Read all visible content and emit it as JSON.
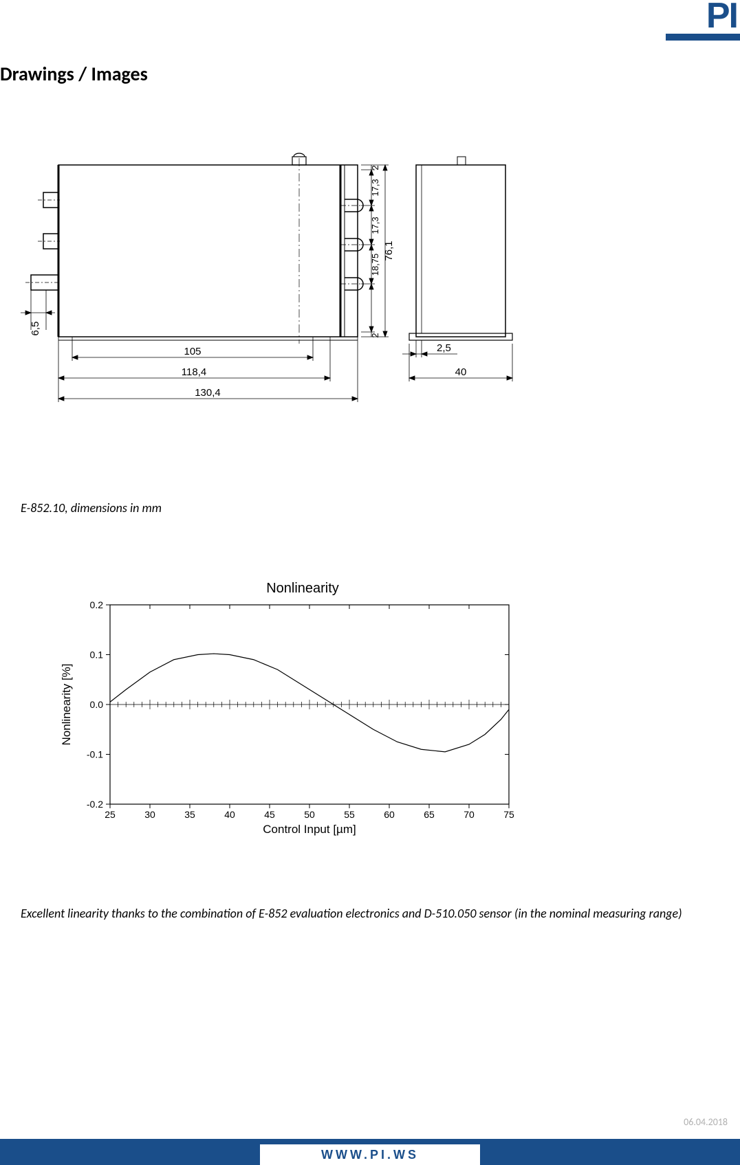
{
  "logo_text": "PI",
  "section_title": "Drawings / Images",
  "caption1": "E-852.10, dimensions in mm",
  "caption2": "Excellent linearity thanks to the combination of E-852 evaluation electronics and D-510.050 sensor (in the nominal measuring range)",
  "date": "06.04.2018",
  "footer_url": "WWW.PI.WS",
  "colors": {
    "brand": "#1a4e8a",
    "text": "#000000",
    "gray": "#b0b0b0",
    "stroke": "#000000",
    "fill_none": "none"
  },
  "drawing": {
    "stroke_width_thin": 0.8,
    "stroke_width_med": 1.5,
    "stroke_width_thick": 3,
    "font_size": 15,
    "dims": {
      "w_105": "105",
      "w_1184": "118,4",
      "w_1304": "130,4",
      "h_65": "6,5",
      "w_40": "40",
      "w_25": "2,5",
      "h_761": "76,1",
      "v_2_top": "2",
      "v_173a": "17,3",
      "v_173b": "17,3",
      "v_1875": "18,75",
      "v_2_bot": "2"
    }
  },
  "chart": {
    "title": "Nonlinearity",
    "xlabel": "Control Input [µm]",
    "ylabel": "Nonlinearity [%]",
    "title_fontsize": 20,
    "label_fontsize": 17,
    "tick_fontsize": 14,
    "x_ticks": [
      25,
      30,
      35,
      40,
      45,
      50,
      55,
      60,
      65,
      70,
      75
    ],
    "y_ticks": [
      -0.2,
      -0.1,
      0.0,
      0.1,
      0.2
    ],
    "xlim": [
      25,
      75
    ],
    "ylim": [
      -0.2,
      0.2
    ],
    "line_color": "#000000",
    "line_width": 1.2,
    "axis_color": "#000000",
    "data": [
      [
        25,
        0.005
      ],
      [
        27,
        0.03
      ],
      [
        30,
        0.065
      ],
      [
        33,
        0.09
      ],
      [
        36,
        0.1
      ],
      [
        38,
        0.102
      ],
      [
        40,
        0.1
      ],
      [
        43,
        0.09
      ],
      [
        46,
        0.07
      ],
      [
        49,
        0.04
      ],
      [
        52,
        0.01
      ],
      [
        55,
        -0.02
      ],
      [
        58,
        -0.05
      ],
      [
        61,
        -0.075
      ],
      [
        64,
        -0.09
      ],
      [
        67,
        -0.095
      ],
      [
        70,
        -0.08
      ],
      [
        72,
        -0.06
      ],
      [
        74,
        -0.03
      ],
      [
        75,
        -0.01
      ]
    ]
  }
}
